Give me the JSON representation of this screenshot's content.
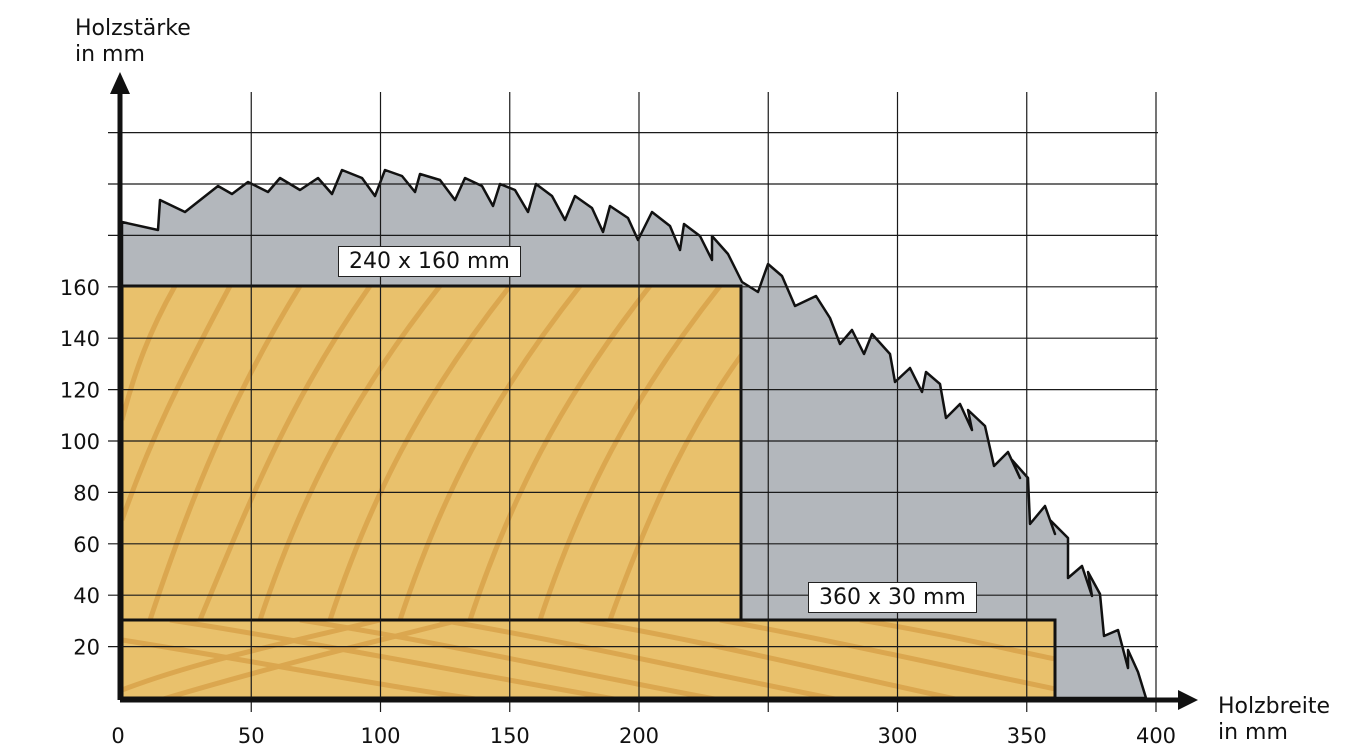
{
  "y_axis": {
    "title_line1": "Holzstärke",
    "title_line2": "in mm",
    "ticks": [
      20,
      40,
      60,
      80,
      100,
      120,
      140,
      160
    ]
  },
  "x_axis": {
    "title_line1": "Holzbreite",
    "title_line2": "in mm",
    "ticks": [
      0,
      50,
      100,
      150,
      200,
      300,
      350,
      400
    ]
  },
  "boards": [
    {
      "label": "240 x 160 mm",
      "width_mm": 240,
      "height_mm": 160
    },
    {
      "label": "360 x 30 mm",
      "width_mm": 360,
      "height_mm": 30
    }
  ],
  "colors": {
    "blade": "#b3b7bc",
    "wood": "#e9c16c",
    "grain": "#d9a34a",
    "grid": "#1a1a1a",
    "axis": "#111111"
  }
}
